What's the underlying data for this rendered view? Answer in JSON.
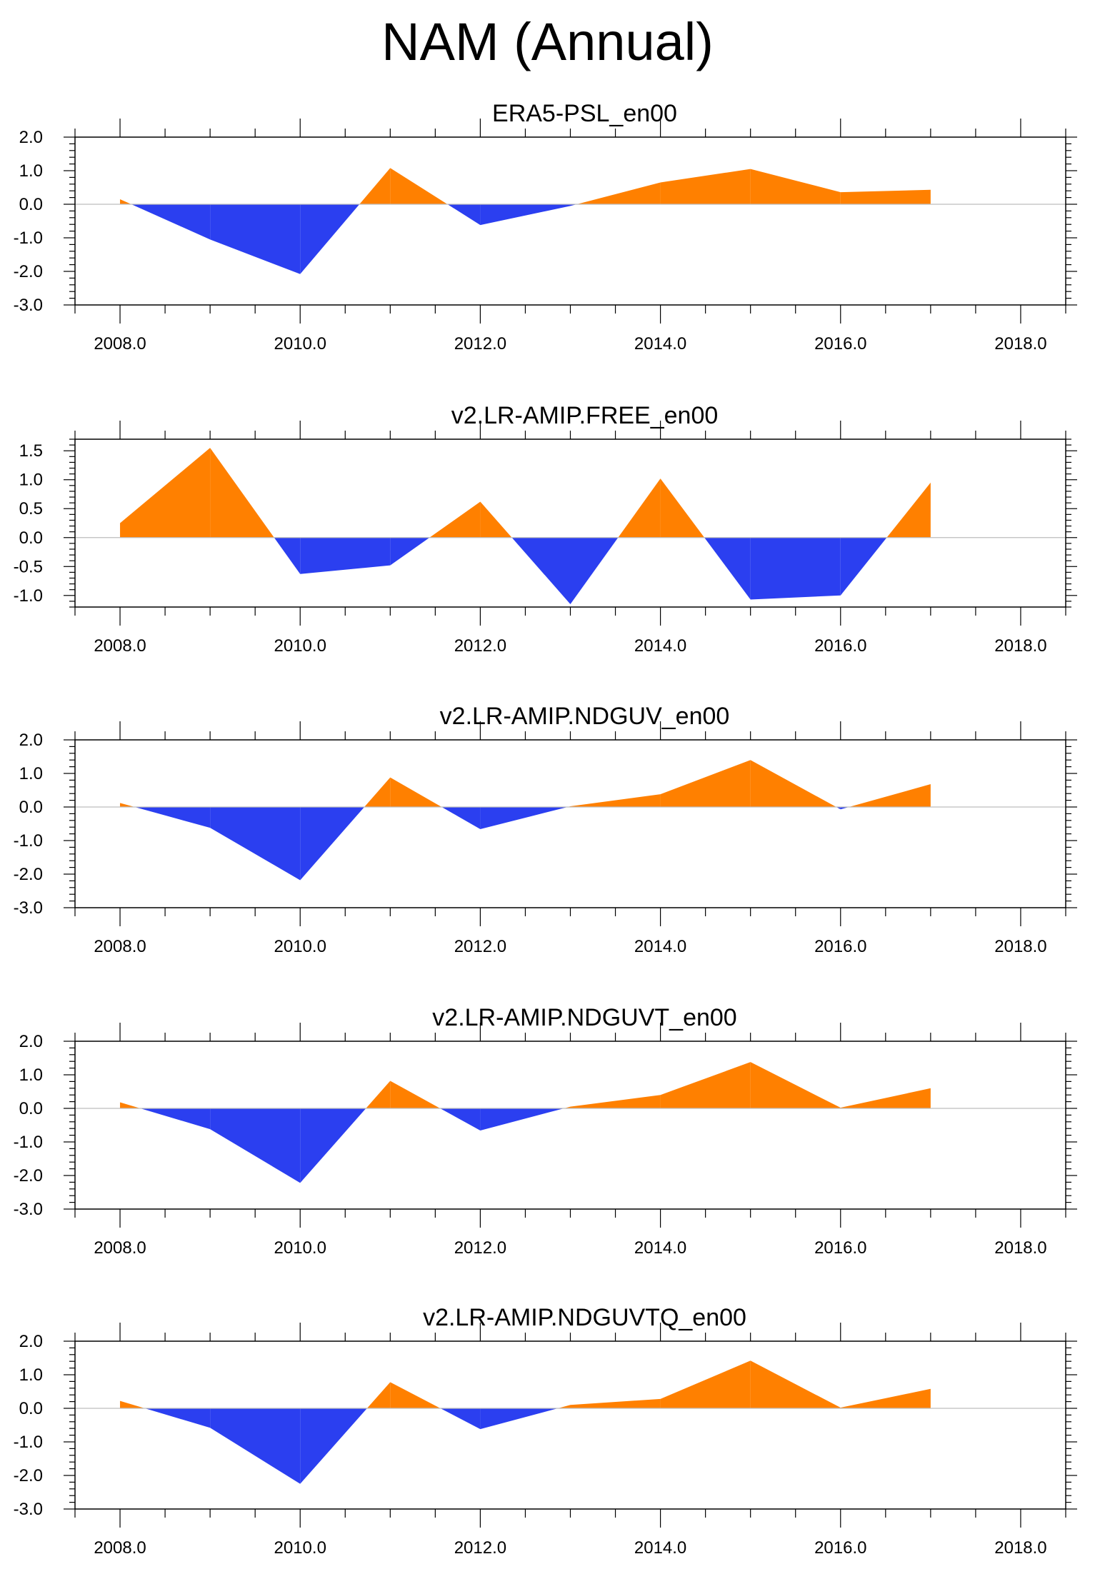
{
  "title": "NAM (Annual)",
  "colors": {
    "positive": "#ff8000",
    "negative": "#2b3ff0",
    "frame": "#000000",
    "zero_line": "#bdbdbd"
  },
  "chart_data": [
    {
      "type": "area",
      "title": "ERA5-PSL_en00",
      "x": [
        2008,
        2009,
        2010,
        2011,
        2012,
        2013,
        2014,
        2015,
        2016,
        2017
      ],
      "values": [
        0.15,
        -1.05,
        -2.08,
        1.08,
        -0.62,
        -0.05,
        0.65,
        1.05,
        0.36,
        0.43
      ],
      "xlim": [
        2007.5,
        2018.5
      ],
      "ylim": [
        -3.0,
        2.0
      ],
      "xticks": [
        2008,
        2010,
        2012,
        2014,
        2016,
        2018
      ],
      "xtick_labels": [
        "2008.0",
        "2010.0",
        "2012.0",
        "2014.0",
        "2016.0",
        "2018.0"
      ],
      "yticks": [
        2.0,
        1.0,
        0.0,
        -1.0,
        -2.0,
        -3.0
      ],
      "ytick_labels": [
        "2.0",
        "1.0",
        "0.0",
        "-1.0",
        "-2.0",
        "-3.0"
      ],
      "xlabel": "",
      "ylabel": ""
    },
    {
      "type": "area",
      "title": "v2.LR-AMIP.FREE_en00",
      "x": [
        2008,
        2009,
        2010,
        2011,
        2012,
        2013,
        2014,
        2015,
        2016,
        2017
      ],
      "values": [
        0.25,
        1.55,
        -0.63,
        -0.48,
        0.62,
        -1.15,
        1.02,
        -1.07,
        -1.0,
        0.95
      ],
      "xlim": [
        2007.5,
        2018.5
      ],
      "ylim": [
        -1.2,
        1.7
      ],
      "xticks": [
        2008,
        2010,
        2012,
        2014,
        2016,
        2018
      ],
      "xtick_labels": [
        "2008.0",
        "2010.0",
        "2012.0",
        "2014.0",
        "2016.0",
        "2018.0"
      ],
      "yticks": [
        1.5,
        1.0,
        0.5,
        0.0,
        -0.5,
        -1.0
      ],
      "ytick_labels": [
        "1.5",
        "1.0",
        "0.5",
        "0.0",
        "-0.5",
        "-1.0"
      ],
      "xlabel": "",
      "ylabel": ""
    },
    {
      "type": "area",
      "title": "v2.LR-AMIP.NDGUV_en00",
      "x": [
        2008,
        2009,
        2010,
        2011,
        2012,
        2013,
        2014,
        2015,
        2016,
        2017
      ],
      "values": [
        0.12,
        -0.62,
        -2.18,
        0.88,
        -0.66,
        0.02,
        0.38,
        1.4,
        -0.07,
        0.68
      ],
      "xlim": [
        2007.5,
        2018.5
      ],
      "ylim": [
        -3.0,
        2.0
      ],
      "xticks": [
        2008,
        2010,
        2012,
        2014,
        2016,
        2018
      ],
      "xtick_labels": [
        "2008.0",
        "2010.0",
        "2012.0",
        "2014.0",
        "2016.0",
        "2018.0"
      ],
      "yticks": [
        2.0,
        1.0,
        0.0,
        -1.0,
        -2.0,
        -3.0
      ],
      "ytick_labels": [
        "2.0",
        "1.0",
        "0.0",
        "-1.0",
        "-2.0",
        "-3.0"
      ],
      "xlabel": "",
      "ylabel": ""
    },
    {
      "type": "area",
      "title": "v2.LR-AMIP.NDGUVT_en00",
      "x": [
        2008,
        2009,
        2010,
        2011,
        2012,
        2013,
        2014,
        2015,
        2016,
        2017
      ],
      "values": [
        0.18,
        -0.62,
        -2.22,
        0.82,
        -0.66,
        0.05,
        0.4,
        1.38,
        0.02,
        0.6
      ],
      "xlim": [
        2007.5,
        2018.5
      ],
      "ylim": [
        -3.0,
        2.0
      ],
      "xticks": [
        2008,
        2010,
        2012,
        2014,
        2016,
        2018
      ],
      "xtick_labels": [
        "2008.0",
        "2010.0",
        "2012.0",
        "2014.0",
        "2016.0",
        "2018.0"
      ],
      "yticks": [
        2.0,
        1.0,
        0.0,
        -1.0,
        -2.0,
        -3.0
      ],
      "ytick_labels": [
        "2.0",
        "1.0",
        "0.0",
        "-1.0",
        "-2.0",
        "-3.0"
      ],
      "xlabel": "",
      "ylabel": ""
    },
    {
      "type": "area",
      "title": "v2.LR-AMIP.NDGUVTQ_en00",
      "x": [
        2008,
        2009,
        2010,
        2011,
        2012,
        2013,
        2014,
        2015,
        2016,
        2017
      ],
      "values": [
        0.22,
        -0.58,
        -2.25,
        0.78,
        -0.62,
        0.1,
        0.28,
        1.42,
        0.02,
        0.58
      ],
      "xlim": [
        2007.5,
        2018.5
      ],
      "ylim": [
        -3.0,
        2.0
      ],
      "xticks": [
        2008,
        2010,
        2012,
        2014,
        2016,
        2018
      ],
      "xtick_labels": [
        "2008.0",
        "2010.0",
        "2012.0",
        "2014.0",
        "2016.0",
        "2018.0"
      ],
      "yticks": [
        2.0,
        1.0,
        0.0,
        -1.0,
        -2.0,
        -3.0
      ],
      "ytick_labels": [
        "2.0",
        "1.0",
        "0.0",
        "-1.0",
        "-2.0",
        "-3.0"
      ],
      "xlabel": "",
      "ylabel": ""
    }
  ]
}
